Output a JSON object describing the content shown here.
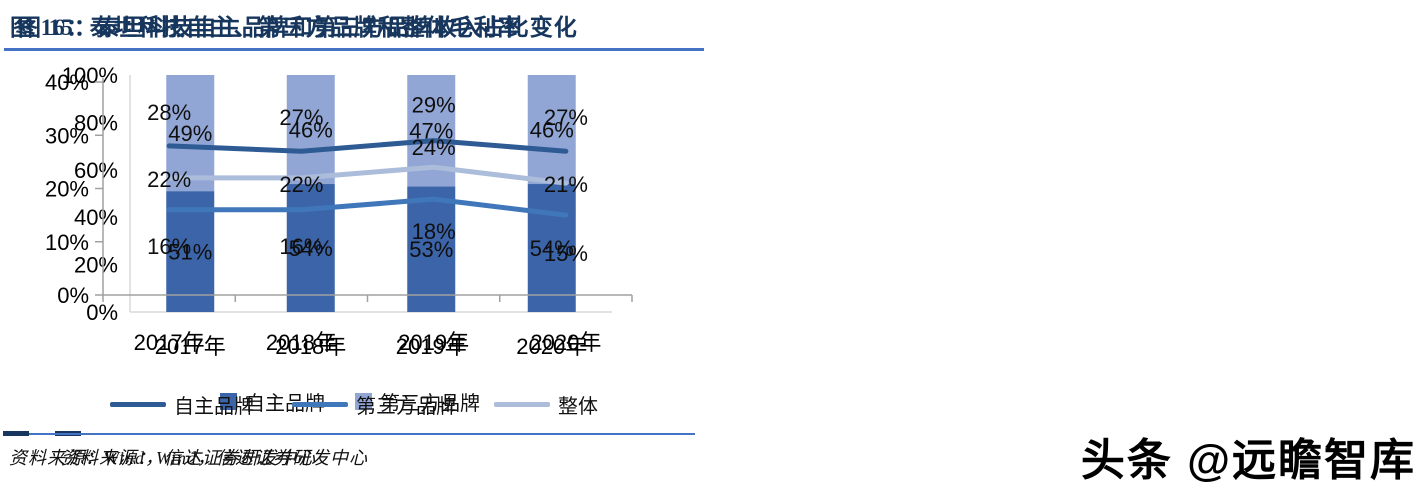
{
  "figure15": {
    "title": "图 15：泰坦科技自主品牌和第三方品牌收入占比变化",
    "source": "资料来源：Wind，信达证券研发中心"
  },
  "figure16": {
    "title": "图 16：泰坦科技自主、第三方品牌和整体毛利率",
    "source": "资料来源：Wind，信达证券研发中心"
  },
  "watermark": {
    "text": "头条 @远瞻智库"
  },
  "colors": {
    "title_navy": "#16365D",
    "rule_blue": "#4472C4",
    "bar_dark": "#3C64A8",
    "bar_light": "#92A6D5",
    "line_own": "#2E5B94",
    "line_third": "#4076BA",
    "line_overall": "#ACBDDB",
    "axis_light": "#D9D9D9",
    "axis_gray": "#A0A0A0",
    "label_black": "#0F0F0F"
  },
  "chart_data": [
    {
      "id": "fig15",
      "type": "bar",
      "stacked": true,
      "title": "泰坦科技自主品牌和第三方品牌收入占比变化",
      "categories": [
        "2017年",
        "2018年",
        "2019年",
        "2020年"
      ],
      "series": [
        {
          "name": "自主品牌",
          "values": [
            51,
            54,
            53,
            54
          ],
          "color": "#3C64A8"
        },
        {
          "name": "第三方品牌",
          "values": [
            49,
            46,
            47,
            46
          ],
          "color": "#92A6D5"
        }
      ],
      "ylim": [
        0,
        100
      ],
      "ytick_step": 20,
      "tick_format": "%",
      "grid": false,
      "legend_position": "bottom",
      "data_labels": true
    },
    {
      "id": "fig16",
      "type": "line",
      "title": "泰坦科技自主、第三方品牌和整体毛利率",
      "categories": [
        "2017年",
        "2018年",
        "2019年",
        "2020年"
      ],
      "series": [
        {
          "name": "自主品牌",
          "values": [
            28,
            27,
            29,
            27
          ],
          "color": "#2E5B94"
        },
        {
          "name": "第三方品牌",
          "values": [
            16,
            16,
            18,
            15
          ],
          "color": "#4076BA"
        },
        {
          "name": "整体",
          "values": [
            22,
            22,
            24,
            21
          ],
          "color": "#ACBDDB"
        }
      ],
      "ylim": [
        0,
        40
      ],
      "ytick_step": 10,
      "tick_format": "%",
      "grid": false,
      "legend_position": "bottom",
      "data_labels": true
    }
  ]
}
